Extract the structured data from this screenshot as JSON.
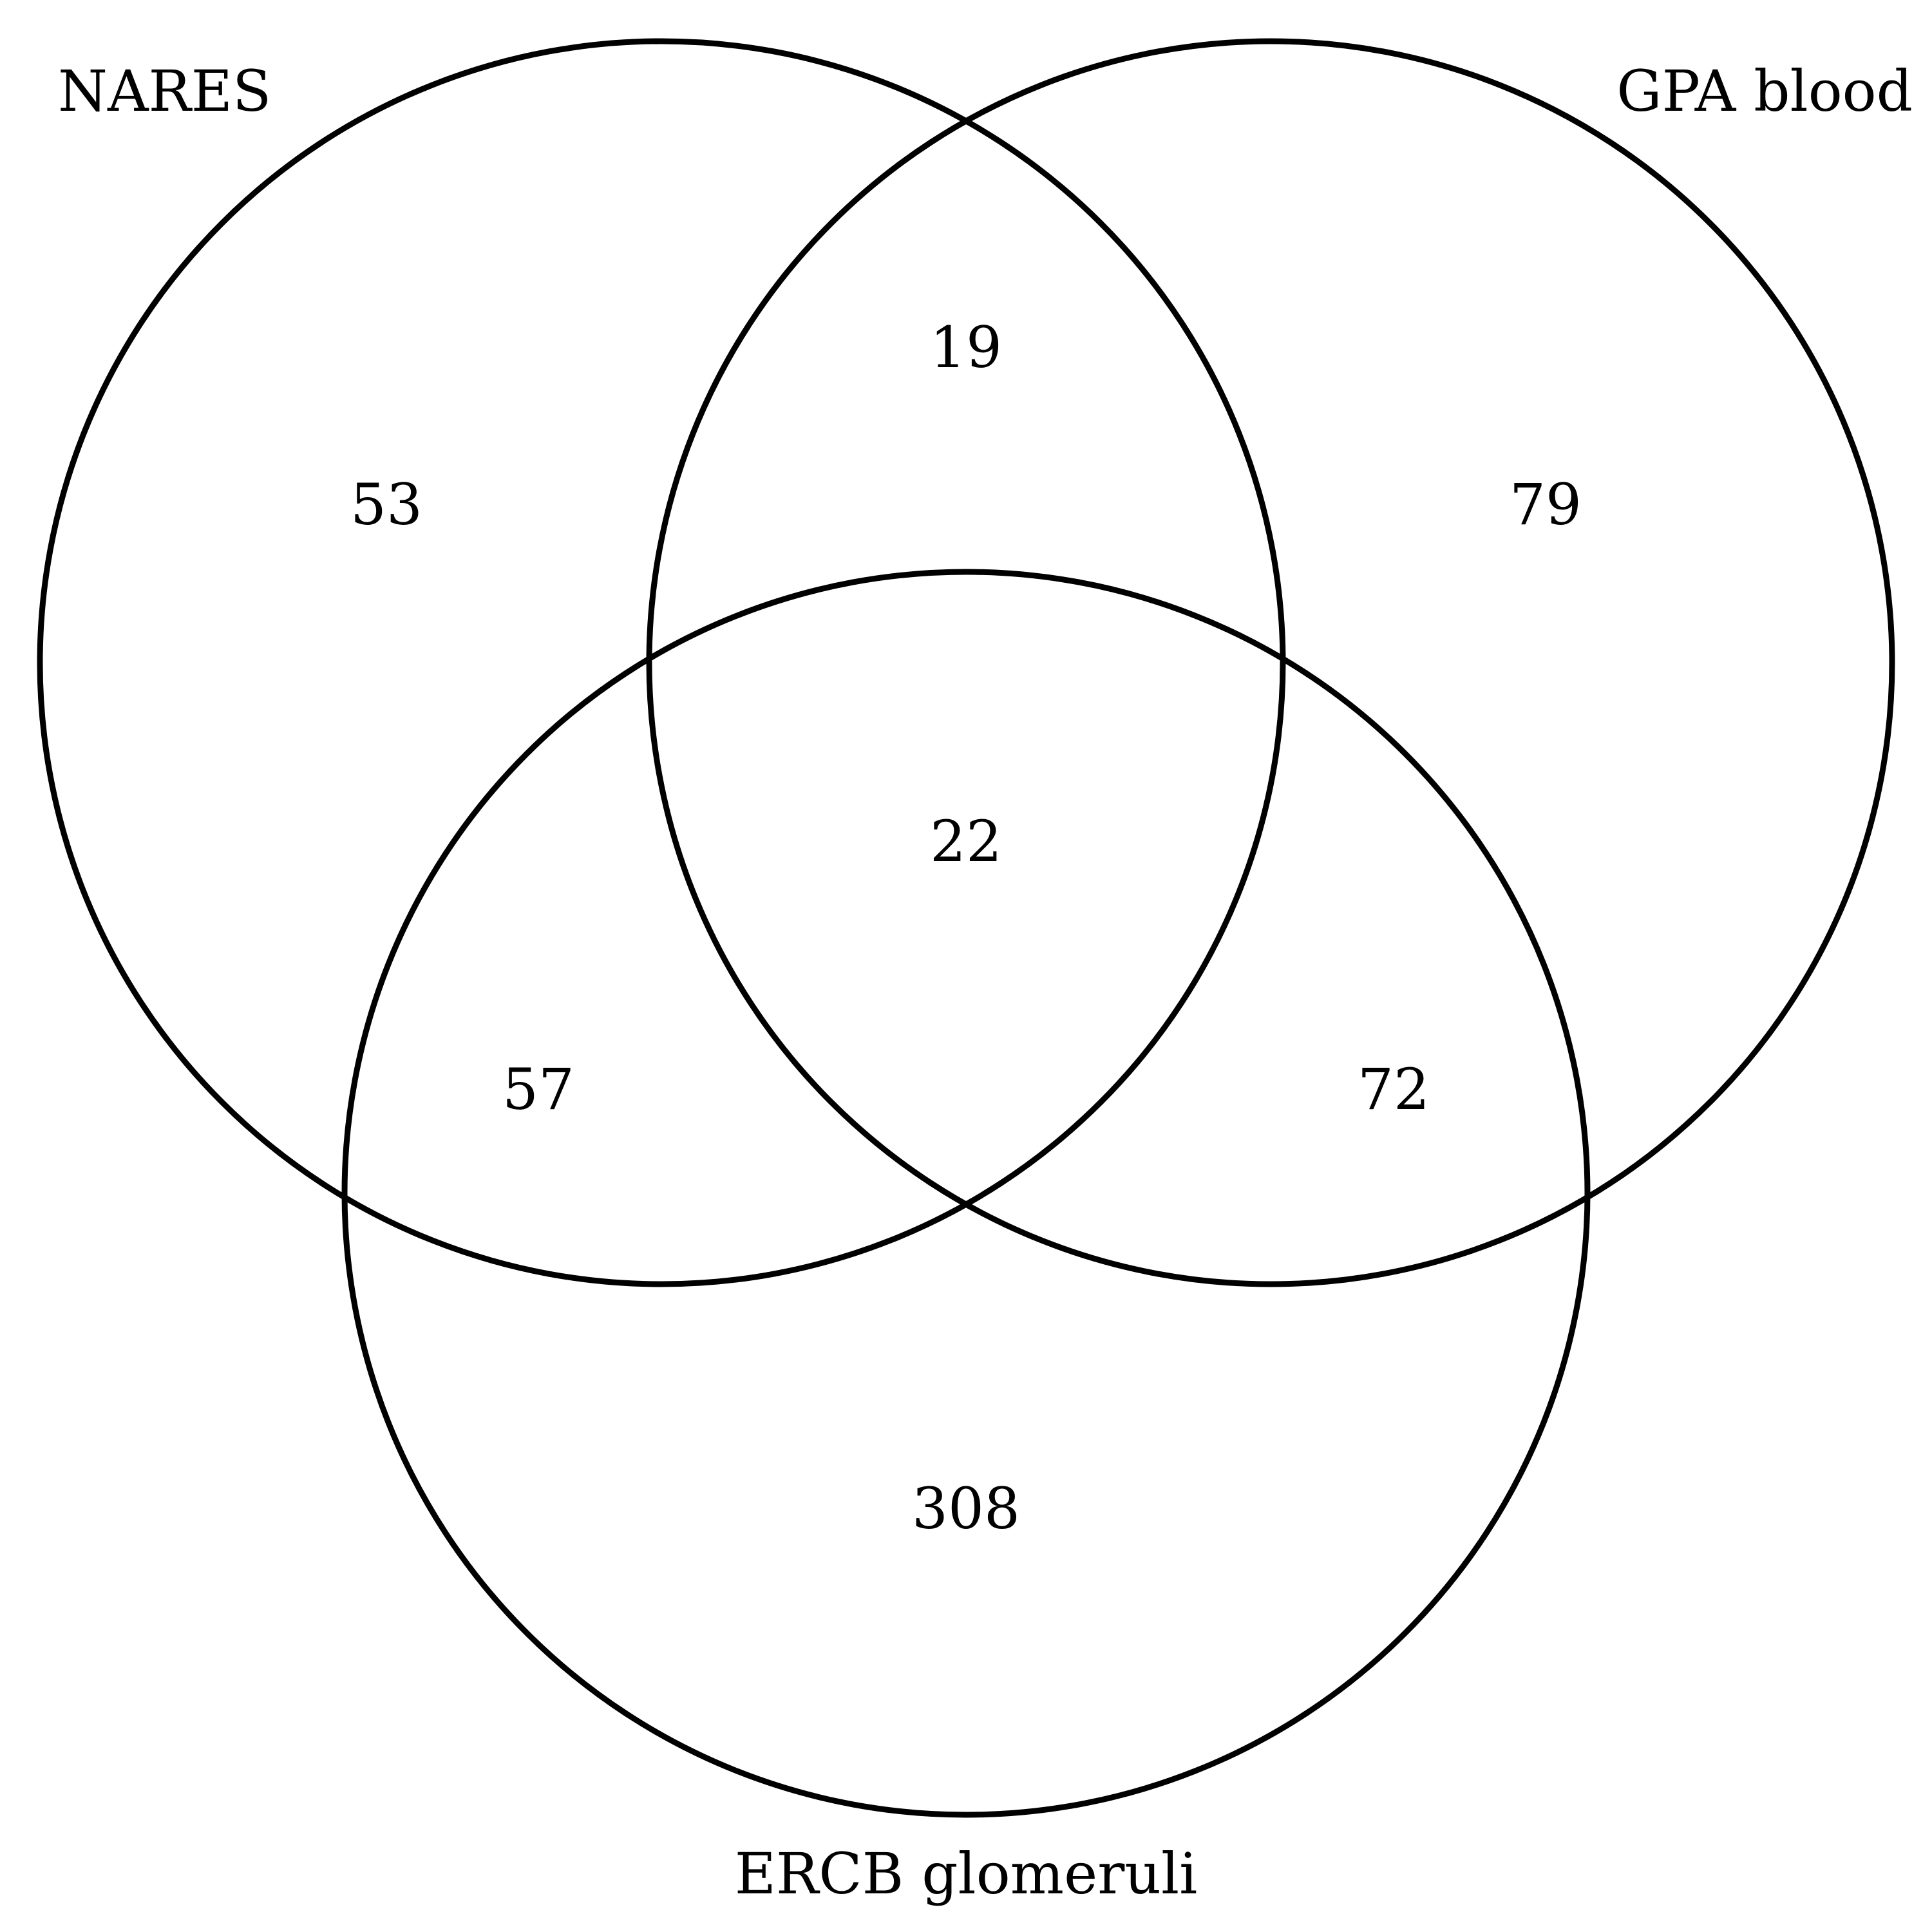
{
  "diagram": {
    "type": "venn-3",
    "colors": {
      "stroke": "#000000",
      "text": "#000000",
      "background": "#ffffff"
    },
    "sets": [
      {
        "id": "nares",
        "label": "NARES"
      },
      {
        "id": "gpa",
        "label": "GPA blood"
      },
      {
        "id": "ercb",
        "label": "ERCB glomeruli"
      }
    ],
    "regions": {
      "nares_only": "53",
      "gpa_only": "79",
      "ercb_only": "308",
      "nares_gpa": "19",
      "nares_ercb": "57",
      "gpa_ercb": "72",
      "all_three": "22"
    }
  }
}
